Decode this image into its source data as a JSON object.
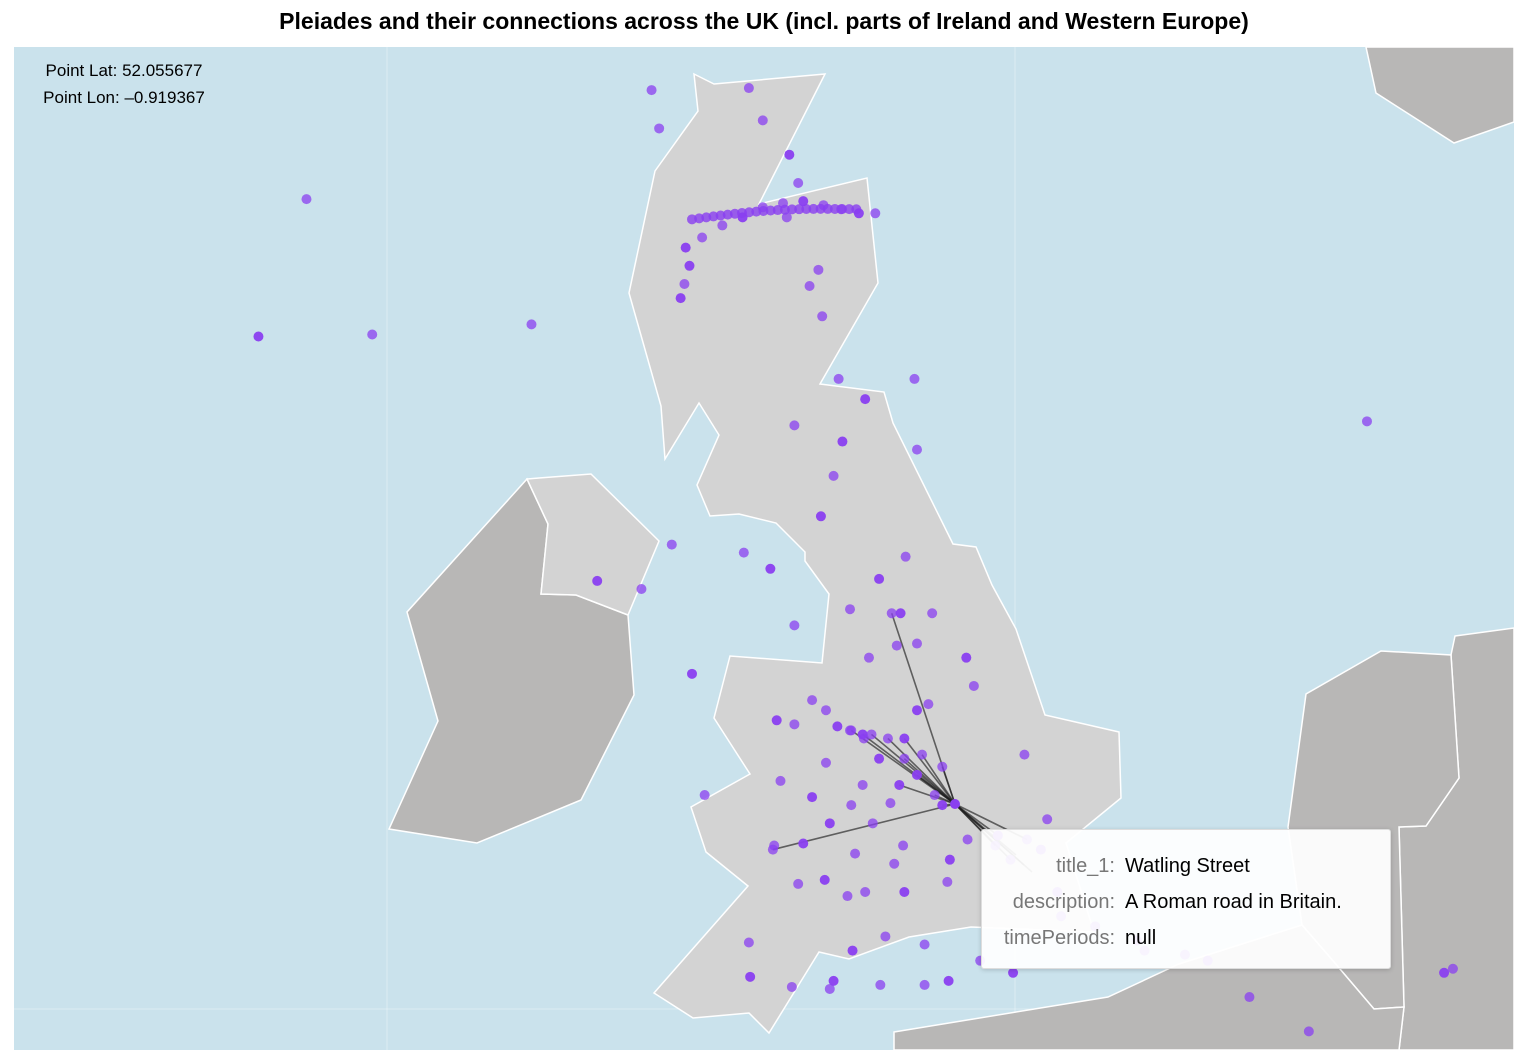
{
  "title": "Pleiades and their connections across the UK (incl. parts of Ireland and Western Europe)",
  "readout": {
    "lat_label": "Point Lat: 52.055677",
    "lon_label": "Point Lon: –0.919367"
  },
  "tooltip": {
    "rows": [
      {
        "key": "title_1:",
        "value": "Watling Street"
      },
      {
        "key": "description:",
        "value": "A Roman road in Britain."
      },
      {
        "key": "timePeriods:",
        "value": "null"
      }
    ]
  },
  "colors": {
    "ocean": "#cae2ec",
    "land_highlight": "#d3d3d3",
    "land_other": "#b8b7b6",
    "border": "#ffffff",
    "point": "#8a3ff0",
    "connection": "#1f1f1f"
  },
  "hub": {
    "lon": -0.919367,
    "lat": 52.055677
  },
  "points": [
    [
      -6.42,
      57.91
    ],
    [
      -5.88,
      57.06
    ],
    [
      -6.05,
      55.05
    ],
    [
      -6.43,
      54.37
    ],
    [
      -5.53,
      54.38
    ],
    [
      -4.27,
      54.43
    ],
    [
      -3.8,
      55.96
    ],
    [
      -3.69,
      56.02
    ],
    [
      -3.62,
      56.06
    ],
    [
      -3.5,
      56.08
    ],
    [
      -3.36,
      56.12
    ],
    [
      -3.2,
      56.15
    ],
    [
      -3.09,
      56.18
    ],
    [
      -3.32,
      55.59
    ],
    [
      -3.26,
      55.4
    ],
    [
      -2.57,
      56.12
    ],
    [
      -2.55,
      55.6
    ],
    [
      -2.44,
      55.44
    ],
    [
      -2.23,
      55.27
    ],
    [
      -2.16,
      55.13
    ],
    [
      -2.25,
      54.96
    ],
    [
      -3.05,
      54.81
    ],
    [
      -2.92,
      54.86
    ],
    [
      -2.76,
      54.92
    ],
    [
      -2.6,
      54.96
    ],
    [
      -2.44,
      55.01
    ],
    [
      -2.28,
      55.03
    ],
    [
      -2.12,
      55.04
    ],
    [
      -1.96,
      55.02
    ],
    [
      -1.82,
      55.0
    ],
    [
      -1.68,
      54.98
    ],
    [
      -1.55,
      54.98
    ],
    [
      -3.06,
      54.63
    ],
    [
      -3.02,
      54.72
    ],
    [
      -2.07,
      54.62
    ],
    [
      -2.0,
      54.7
    ],
    [
      -3.09,
      54.56
    ],
    [
      -1.97,
      54.47
    ],
    [
      -1.84,
      54.16
    ],
    [
      -1.63,
      54.06
    ],
    [
      -1.24,
      54.16
    ],
    [
      -2.19,
      53.93
    ],
    [
      -1.81,
      53.85
    ],
    [
      -1.22,
      53.81
    ],
    [
      -1.88,
      53.68
    ],
    [
      -1.98,
      53.48
    ],
    [
      -3.16,
      53.34
    ],
    [
      -2.59,
      53.3
    ],
    [
      -2.38,
      53.22
    ],
    [
      -3.4,
      53.12
    ],
    [
      -1.31,
      53.28
    ],
    [
      -1.52,
      53.17
    ],
    [
      -1.75,
      53.02
    ],
    [
      -2.19,
      52.94
    ],
    [
      -1.35,
      53.0
    ],
    [
      -1.1,
      53.0
    ],
    [
      -1.38,
      52.84
    ],
    [
      -3.75,
      53.16
    ],
    [
      -1.6,
      52.78
    ],
    [
      -1.22,
      52.85
    ],
    [
      -0.83,
      52.78
    ],
    [
      -2.05,
      52.57
    ],
    [
      -1.94,
      52.52
    ],
    [
      -1.85,
      52.44
    ],
    [
      -1.75,
      52.42
    ],
    [
      -1.64,
      52.38
    ],
    [
      -1.52,
      52.28
    ],
    [
      -1.65,
      52.15
    ],
    [
      -1.43,
      52.06
    ],
    [
      -2.33,
      52.47
    ],
    [
      -2.19,
      52.45
    ],
    [
      -1.94,
      52.26
    ],
    [
      -1.22,
      52.52
    ],
    [
      -1.13,
      52.55
    ],
    [
      -0.77,
      52.64
    ],
    [
      -3.0,
      52.7
    ],
    [
      -2.3,
      52.17
    ],
    [
      -2.9,
      52.1
    ],
    [
      -2.05,
      52.09
    ],
    [
      -1.74,
      52.05
    ],
    [
      -1.57,
      51.96
    ],
    [
      -1.91,
      51.96
    ],
    [
      -1.33,
      51.85
    ],
    [
      -2.35,
      51.85
    ],
    [
      -2.12,
      51.86
    ],
    [
      -1.71,
      51.81
    ],
    [
      -1.4,
      51.76
    ],
    [
      -0.96,
      51.78
    ],
    [
      -0.82,
      51.88
    ],
    [
      -2.16,
      51.66
    ],
    [
      -1.95,
      51.68
    ],
    [
      -1.77,
      51.6
    ],
    [
      -1.63,
      51.62
    ],
    [
      -1.32,
      51.62
    ],
    [
      -0.98,
      51.67
    ],
    [
      -1.47,
      51.4
    ],
    [
      -1.73,
      51.33
    ],
    [
      -1.16,
      51.36
    ],
    [
      -2.55,
      51.37
    ],
    [
      -2.54,
      51.2
    ],
    [
      -2.21,
      51.15
    ],
    [
      -1.91,
      51.14
    ],
    [
      -1.88,
      51.18
    ],
    [
      -1.51,
      51.16
    ],
    [
      -1.16,
      51.16
    ],
    [
      -0.97,
      51.18
    ],
    [
      -0.72,
      51.28
    ],
    [
      -0.19,
      51.98
    ],
    [
      -0.11,
      51.62
    ],
    [
      -1.69,
      50.75
    ],
    [
      -0.37,
      52.3
    ],
    [
      -0.24,
      51.83
    ],
    [
      -0.08,
      51.5
    ],
    [
      0.19,
      51.45
    ],
    [
      0.52,
      51.38
    ],
    [
      0.58,
      51.33
    ],
    [
      0.9,
      51.31
    ],
    [
      1.08,
      51.28
    ],
    [
      1.41,
      51.1
    ],
    [
      1.88,
      50.93
    ],
    [
      2.95,
      51.22
    ],
    [
      3.02,
      51.24
    ],
    [
      1.6,
      50.73
    ],
    [
      1.86,
      50.74
    ],
    [
      2.0,
      50.75
    ],
    [
      2.2,
      50.73
    ],
    [
      -0.46,
      51.22
    ],
    [
      2.34,
      53.95
    ]
  ],
  "connections": [
    [
      -1.42,
      53.0
    ],
    [
      -1.65,
      52.4
    ],
    [
      -1.58,
      52.4
    ],
    [
      -1.45,
      52.38
    ],
    [
      -1.32,
      52.38
    ],
    [
      -1.18,
      52.3
    ],
    [
      -1.32,
      52.28
    ],
    [
      -1.22,
      52.2
    ],
    [
      -1.02,
      52.24
    ],
    [
      -1.08,
      52.1
    ],
    [
      -1.02,
      52.05
    ],
    [
      -2.36,
      51.83
    ],
    [
      -1.74,
      52.42
    ],
    [
      -1.36,
      52.15
    ],
    [
      -0.6,
      51.85
    ],
    [
      -0.48,
      51.78
    ],
    [
      -0.58,
      51.9
    ],
    [
      -0.35,
      51.88
    ]
  ],
  "axis_label_note": ""
}
